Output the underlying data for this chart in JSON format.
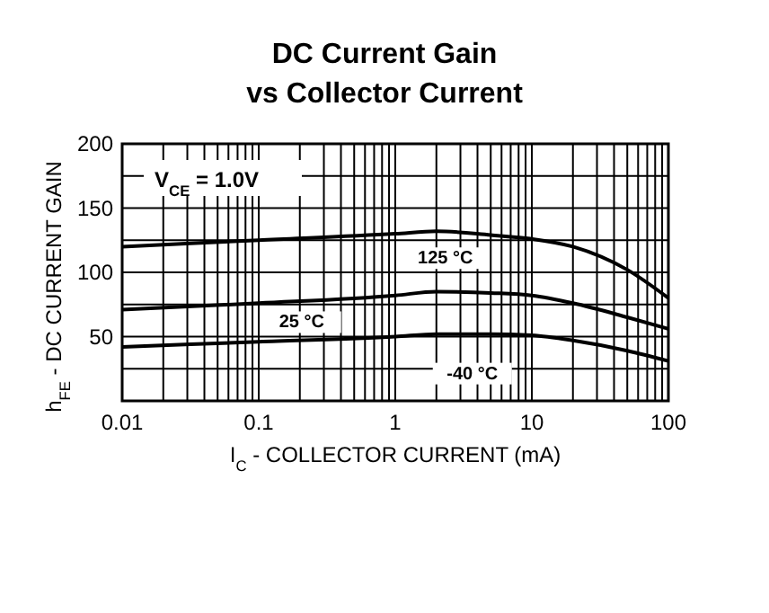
{
  "chart_data": {
    "type": "line",
    "title": "DC Current Gain",
    "subtitle": "vs Collector Current",
    "xlabel": "I$_{C}$ - COLLECTOR CURRENT (mA)",
    "ylabel": "h$_{FE}$ - DC CURRENT GAIN",
    "annotations": [
      "V$_{CE}$ = 1.0V"
    ],
    "log": "x",
    "grid": true,
    "line_style": "solid",
    "x": [
      0.01,
      0.1,
      1,
      2,
      5,
      10,
      20,
      50,
      100
    ],
    "xlim": [
      0.01,
      100
    ],
    "ylim": [
      0,
      200
    ],
    "xticks": [
      0.01,
      {
        "value": 0.02,
        "label": null
      },
      {
        "value": 0.03,
        "label": null
      },
      {
        "value": 0.04,
        "label": null
      },
      {
        "value": 0.05,
        "label": null
      },
      {
        "value": 0.06,
        "label": null
      },
      {
        "value": 0.07,
        "label": null
      },
      {
        "value": 0.08,
        "label": null
      },
      {
        "value": 0.09,
        "label": null
      },
      0.1,
      {
        "value": 0.2,
        "label": null
      },
      {
        "value": 0.3,
        "label": null
      },
      {
        "value": 0.4,
        "label": null
      },
      {
        "value": 0.5,
        "label": null
      },
      {
        "value": 0.6,
        "label": null
      },
      {
        "value": 0.7,
        "label": null
      },
      {
        "value": 0.8,
        "label": null
      },
      {
        "value": 0.9,
        "label": null
      },
      1,
      {
        "value": 2,
        "label": null
      },
      {
        "value": 3,
        "label": null
      },
      {
        "value": 4,
        "label": null
      },
      {
        "value": 5,
        "label": null
      },
      {
        "value": 6,
        "label": null
      },
      {
        "value": 7,
        "label": null
      },
      {
        "value": 8,
        "label": null
      },
      {
        "value": 9,
        "label": null
      },
      10,
      {
        "value": 20,
        "label": null
      },
      {
        "value": 30,
        "label": null
      },
      {
        "value": 40,
        "label": null
      },
      {
        "value": 50,
        "label": null
      },
      {
        "value": 60,
        "label": null
      },
      {
        "value": 70,
        "label": null
      },
      {
        "value": 80,
        "label": null
      },
      {
        "value": 90,
        "label": null
      },
      100
    ],
    "yticks": [
      {
        "value": 0,
        "label": null
      },
      {
        "value": 25,
        "label": null
      },
      50,
      {
        "value": 75,
        "label": null
      },
      100,
      {
        "value": 125,
        "label": null
      },
      150,
      {
        "value": 175,
        "label": null
      },
      200
    ],
    "series": [
      {
        "name": "125 °C",
        "color": "#000000",
        "values": [
          120,
          125,
          130,
          132,
          129,
          126,
          120,
          102,
          80
        ]
      },
      {
        "name": "25 °C",
        "color": "#000000",
        "values": [
          71,
          76,
          82,
          85,
          84,
          82,
          76,
          65,
          56
        ]
      },
      {
        "name": "-40 °C",
        "color": "#000000",
        "values": [
          42,
          46,
          50,
          52,
          52,
          51,
          47,
          39,
          31
        ]
      }
    ]
  }
}
